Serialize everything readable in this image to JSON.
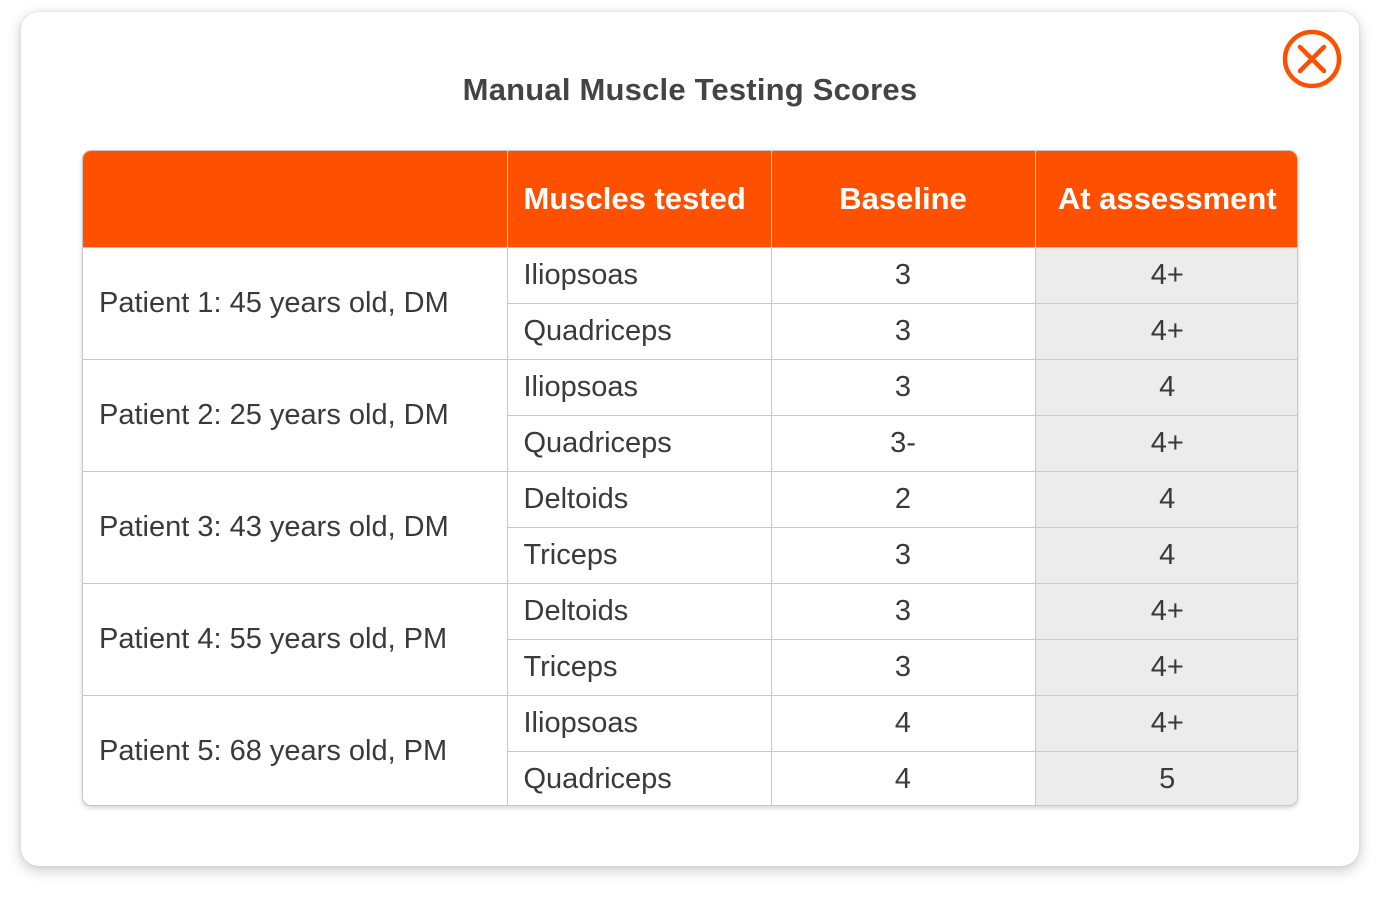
{
  "title": "Manual Muscle Testing Scores",
  "close_icon": "close-circle-icon",
  "colors": {
    "accent": "#ff5000",
    "header_text": "#ffffff",
    "assessment_bg": "#ececec"
  },
  "table": {
    "headers": [
      "",
      "Muscles tested",
      "Baseline",
      "At assessment"
    ],
    "patients": [
      {
        "label": "Patient 1: 45 years old, DM",
        "rows": [
          {
            "muscle": "Iliopsoas",
            "baseline": "3",
            "assessment": "4+"
          },
          {
            "muscle": "Quadriceps",
            "baseline": "3",
            "assessment": "4+"
          }
        ]
      },
      {
        "label": "Patient 2: 25 years old, DM",
        "rows": [
          {
            "muscle": "Iliopsoas",
            "baseline": "3",
            "assessment": "4"
          },
          {
            "muscle": "Quadriceps",
            "baseline": "3-",
            "assessment": "4+"
          }
        ]
      },
      {
        "label": "Patient 3: 43 years old, DM",
        "rows": [
          {
            "muscle": "Deltoids",
            "baseline": "2",
            "assessment": "4"
          },
          {
            "muscle": "Triceps",
            "baseline": "3",
            "assessment": "4"
          }
        ]
      },
      {
        "label": "Patient 4: 55 years old, PM",
        "rows": [
          {
            "muscle": "Deltoids",
            "baseline": "3",
            "assessment": "4+"
          },
          {
            "muscle": "Triceps",
            "baseline": "3",
            "assessment": "4+"
          }
        ]
      },
      {
        "label": "Patient 5: 68 years old, PM",
        "rows": [
          {
            "muscle": "Iliopsoas",
            "baseline": "4",
            "assessment": "4+"
          },
          {
            "muscle": "Quadriceps",
            "baseline": "4",
            "assessment": "5"
          }
        ]
      }
    ]
  }
}
